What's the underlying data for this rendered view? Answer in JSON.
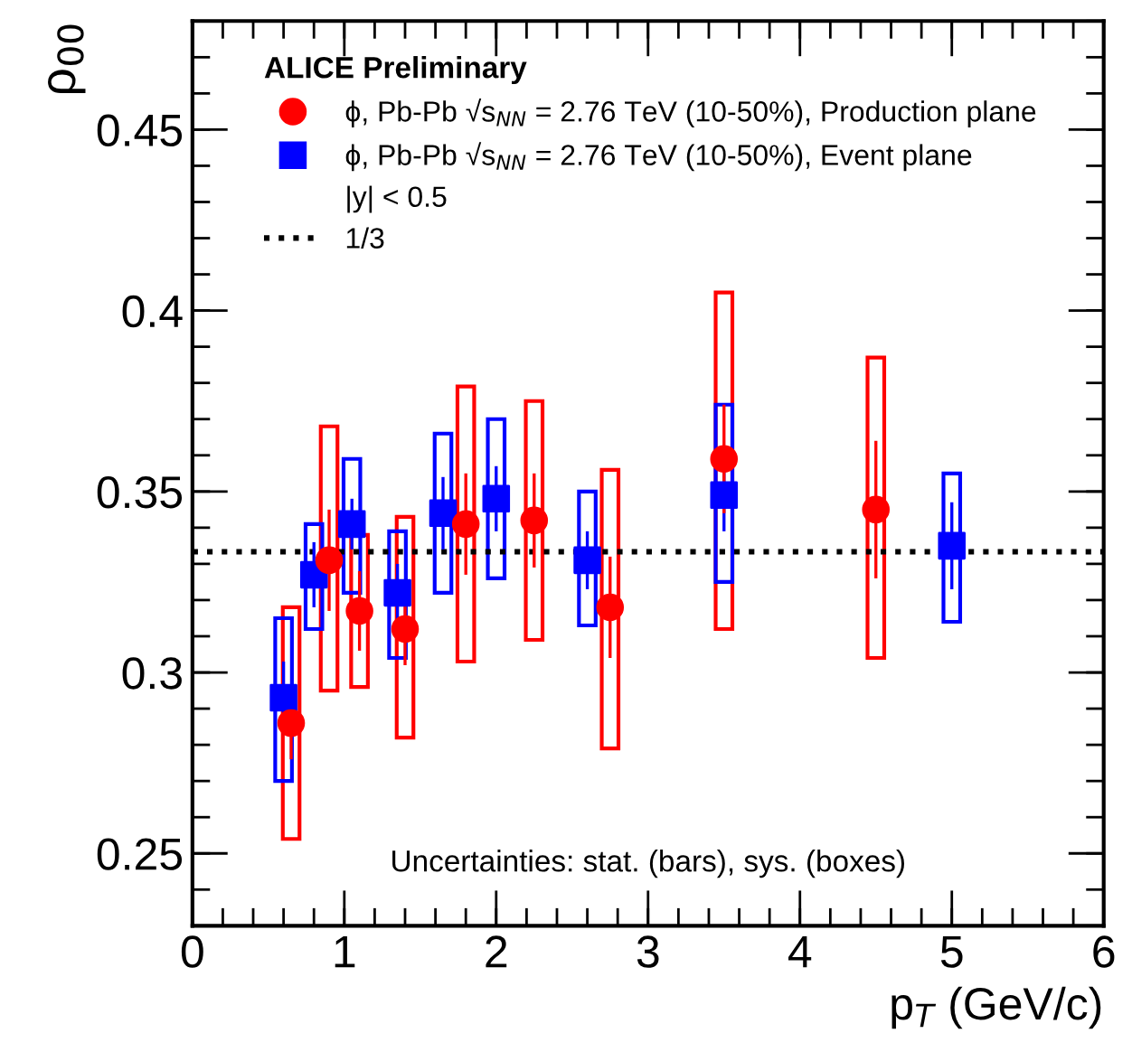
{
  "chart_data": {
    "type": "scatter",
    "xlabel": "p$_{T}$ (GeV/c)",
    "ylabel": "ρ$_{00}$",
    "legend_title": "ALICE Preliminary",
    "xlim": [
      0,
      6
    ],
    "ylim": [
      0.23,
      0.48
    ],
    "xticks": [
      0,
      1,
      2,
      3,
      4,
      5,
      6
    ],
    "yticks": [
      0.25,
      {
        "value": 0.3,
        "label": "0.3"
      },
      0.35,
      {
        "value": 0.4,
        "label": "0.4"
      },
      0.45
    ],
    "grid": false,
    "legend": "top left",
    "series": [
      {
        "name": "ϕ, Pb-Pb √s$_{NN}$ = 2.76 TeV (10-50%), Production plane",
        "marker": "circle",
        "color": "#ff0000",
        "x": [
          0.65,
          0.9,
          1.1,
          1.4,
          1.8,
          2.25,
          2.75,
          3.5,
          4.5
        ],
        "values": [
          0.286,
          0.331,
          0.317,
          0.312,
          0.341,
          0.342,
          0.318,
          0.359,
          0.345
        ],
        "errors": [
          0.01,
          0.014,
          0.011,
          0.01,
          0.014,
          0.013,
          0.014,
          0.015,
          0.019
        ]
      },
      {
        "name": "ϕ, Pb-Pb √s$_{NN}$ = 2.76 TeV (10-50%), Event plane",
        "marker": "square",
        "color": "#0000ff",
        "x": [
          0.6,
          0.8,
          1.05,
          1.35,
          1.65,
          2.0,
          2.6,
          3.5,
          5.0
        ],
        "values": [
          0.293,
          0.327,
          0.341,
          0.322,
          0.344,
          0.348,
          0.331,
          0.349,
          0.335
        ],
        "errors": [
          0.01,
          0.009,
          0.007,
          0.008,
          0.01,
          0.009,
          0.008,
          0.01,
          0.012
        ]
      },
      {
        "type": "bar",
        "color": "#ff0000",
        "x": [
          0.65,
          0.9,
          1.1,
          1.4,
          1.8,
          2.25,
          2.75,
          3.5,
          4.5
        ],
        "base": [
          0.254,
          0.295,
          0.296,
          0.282,
          0.303,
          0.309,
          0.279,
          0.312,
          0.304
        ],
        "values": [
          0.064,
          0.073,
          0.042,
          0.061,
          0.076,
          0.066,
          0.077,
          0.093,
          0.083
        ]
      },
      {
        "type": "bar",
        "color": "#0000ff",
        "x": [
          0.6,
          0.8,
          1.05,
          1.35,
          1.65,
          2.0,
          2.6,
          3.5,
          5.0
        ],
        "base": [
          0.27,
          0.312,
          0.322,
          0.304,
          0.322,
          0.326,
          0.313,
          0.325,
          0.314
        ],
        "values": [
          0.045,
          0.029,
          0.037,
          0.035,
          0.044,
          0.044,
          0.037,
          0.049,
          0.041
        ]
      },
      {
        "name": "1/3",
        "type": "line",
        "color": "#000000",
        "line_style": "dotted",
        "marker": "none",
        "x": [
          0,
          6
        ],
        "values": [
          0.3333333333,
          0.3333333333
        ]
      }
    ],
    "annotations": [
      "|y| < 0.5",
      "Uncertainties: stat. (bars), sys. (boxes)"
    ]
  }
}
